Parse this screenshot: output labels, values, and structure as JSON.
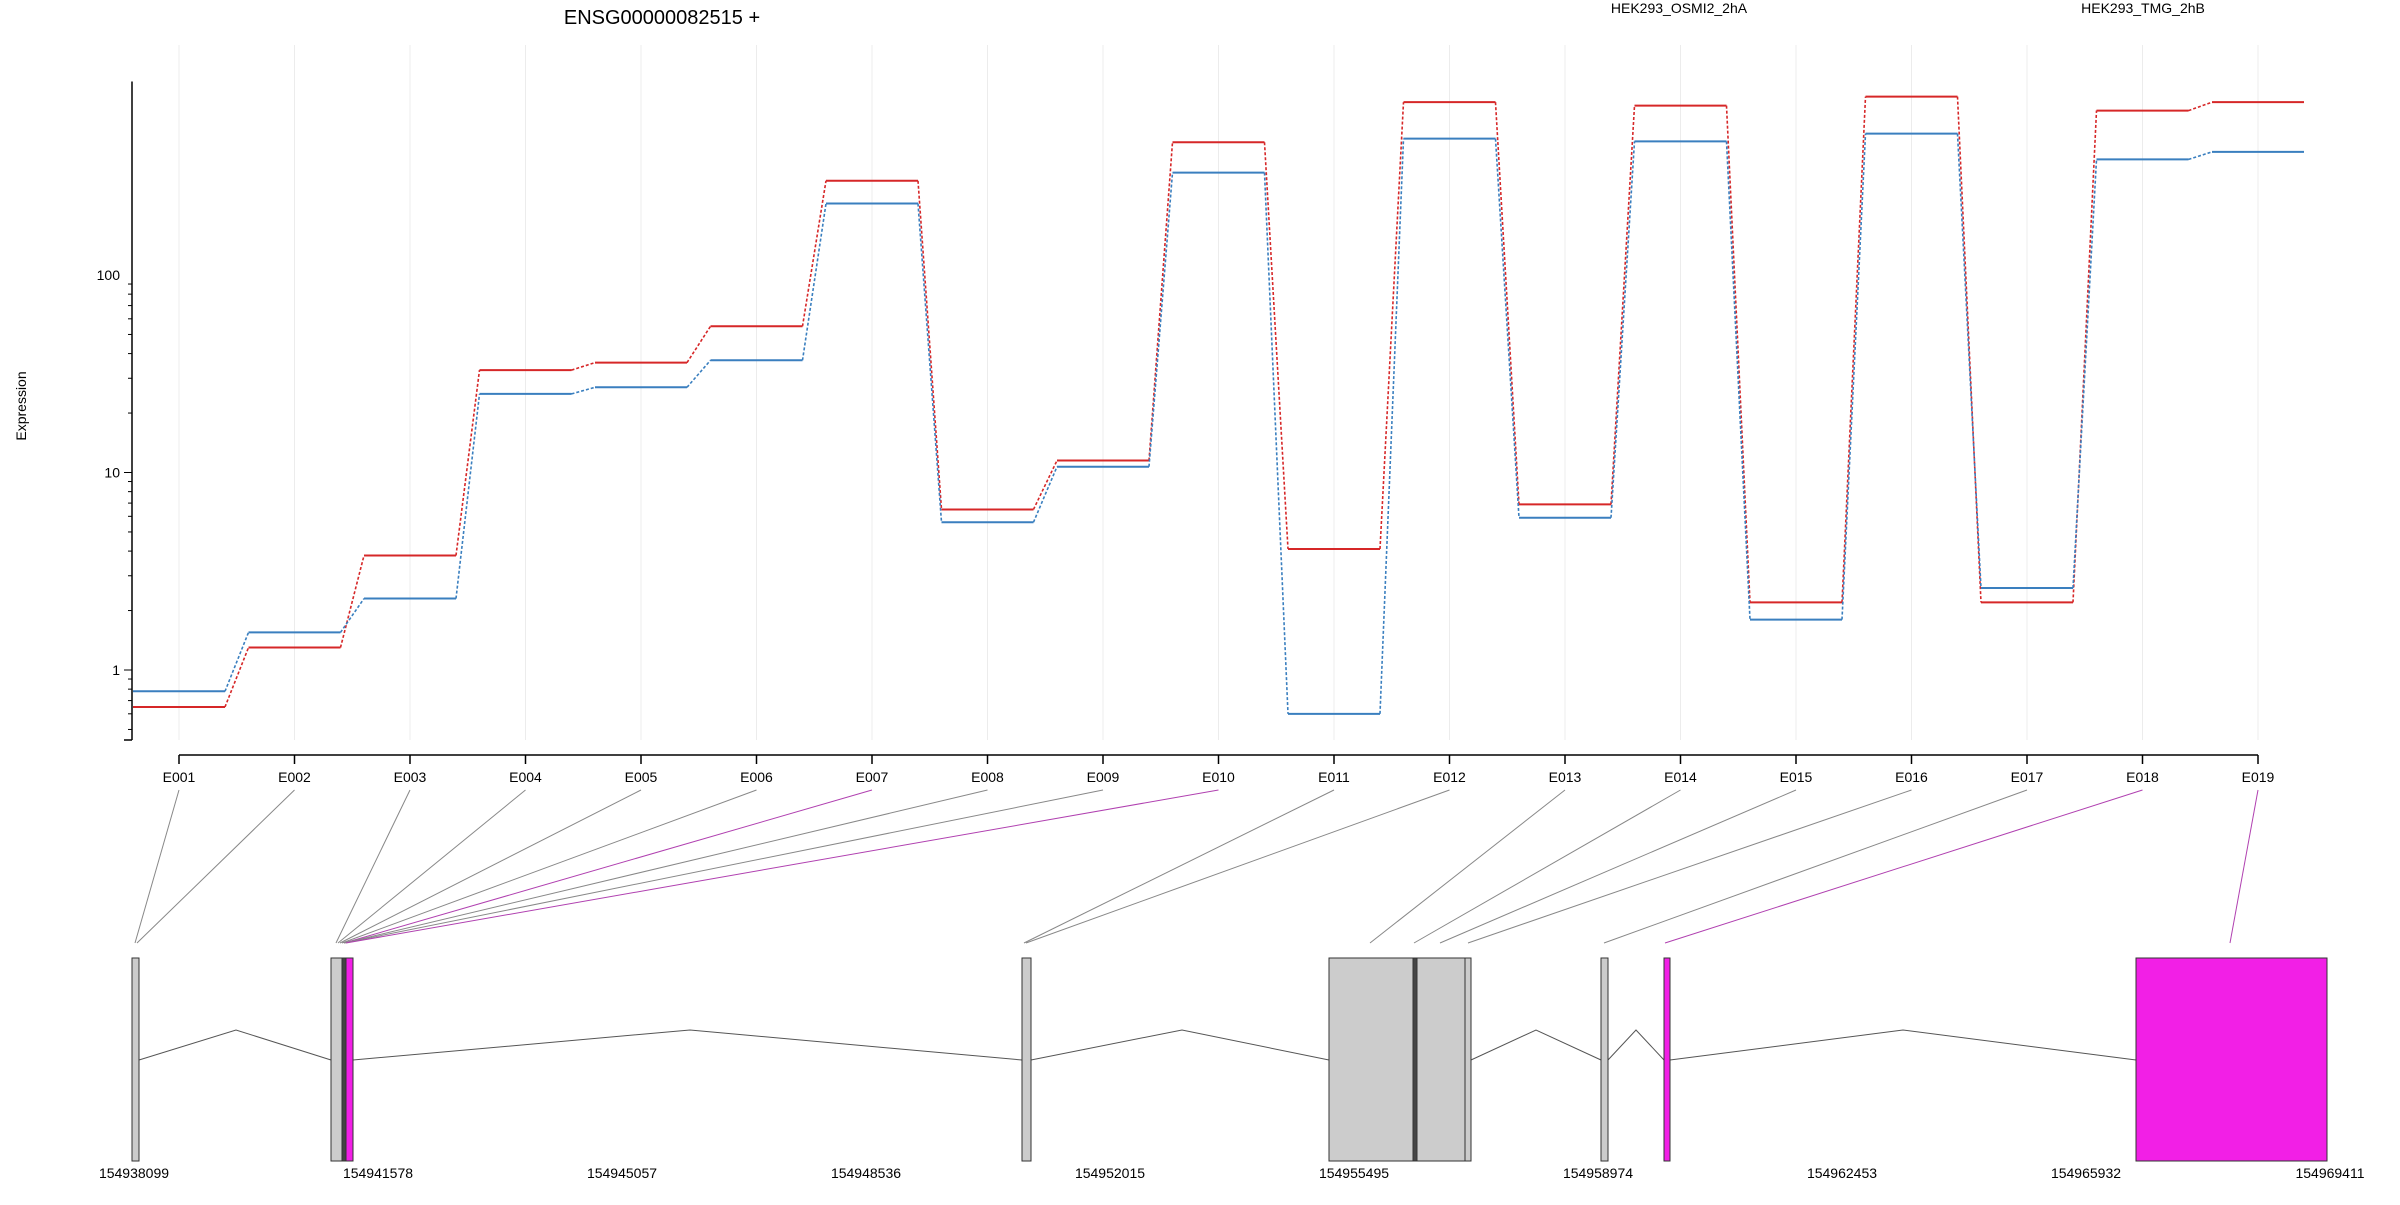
{
  "title": "ENSG00000082515 +",
  "ylabel": "Expression",
  "colors": {
    "osmi": "#d62728",
    "tmg": "#3a7fbf",
    "exon_gray": "#cccccc",
    "exon_magenta": "#f21fe6",
    "grid": "#ececec",
    "link_gray": "#888888",
    "link_magenta": "#b040b0"
  },
  "chart_data": {
    "type": "line",
    "yscale": "log",
    "ylim": [
      0.45,
      900
    ],
    "yticks": [
      "1",
      "10",
      "100"
    ],
    "categories": [
      "E001",
      "E002",
      "E003",
      "E004",
      "E005",
      "E006",
      "E007",
      "E008",
      "E009",
      "E010",
      "E011",
      "E012",
      "E013",
      "E014",
      "E015",
      "E016",
      "E017",
      "E018",
      "E019"
    ],
    "series": [
      {
        "name": "HEK293_OSMI2_2hA",
        "values": [
          0.65,
          1.3,
          3.8,
          33,
          36,
          55,
          300,
          6.5,
          11.5,
          470,
          4.1,
          750,
          6.9,
          720,
          2.2,
          800,
          2.2,
          680,
          750
        ]
      },
      {
        "name": "HEK293_TMG_2hB",
        "values": [
          0.78,
          1.55,
          2.3,
          25,
          27,
          37,
          230,
          5.6,
          10.7,
          330,
          0.6,
          490,
          5.9,
          475,
          1.8,
          520,
          2.6,
          385,
          420
        ]
      }
    ]
  },
  "gene_model": {
    "coord_ticks": [
      "154938099",
      "154941578",
      "154945057",
      "154948536",
      "154952015",
      "154955495",
      "154958974",
      "154962453",
      "154965932",
      "154969411"
    ],
    "exon_links": [
      {
        "label": "E001",
        "gx": 135,
        "style": "gray"
      },
      {
        "label": "E002",
        "gx": 137,
        "style": "gray"
      },
      {
        "label": "E003",
        "gx": 336,
        "style": "gray"
      },
      {
        "label": "E004",
        "gx": 338,
        "style": "gray"
      },
      {
        "label": "E005",
        "gx": 340,
        "style": "gray"
      },
      {
        "label": "E006",
        "gx": 342,
        "style": "gray"
      },
      {
        "label": "E007",
        "gx": 344,
        "style": "magenta"
      },
      {
        "label": "E008",
        "gx": 344,
        "style": "gray"
      },
      {
        "label": "E009",
        "gx": 344,
        "style": "gray"
      },
      {
        "label": "E010",
        "gx": 346,
        "style": "magenta"
      },
      {
        "label": "E011",
        "gx": 1024,
        "style": "gray"
      },
      {
        "label": "E012",
        "gx": 1026,
        "style": "gray"
      },
      {
        "label": "E013",
        "gx": 1370,
        "style": "gray"
      },
      {
        "label": "E014",
        "gx": 1414,
        "style": "gray"
      },
      {
        "label": "E015",
        "gx": 1440,
        "style": "gray"
      },
      {
        "label": "E016",
        "gx": 1468,
        "style": "gray"
      },
      {
        "label": "E017",
        "gx": 1604,
        "style": "gray"
      },
      {
        "label": "E018",
        "gx": 1665,
        "style": "magenta"
      },
      {
        "label": "E019",
        "gx": 2230,
        "style": "magenta"
      }
    ],
    "exons": [
      {
        "x0": 132,
        "x1": 139,
        "fill": "gray"
      },
      {
        "x0": 331,
        "x1": 342,
        "fill": "gray"
      },
      {
        "x0": 342,
        "x1": 346,
        "fill": "dark"
      },
      {
        "x0": 346,
        "x1": 353,
        "fill": "magenta"
      },
      {
        "x0": 1022,
        "x1": 1031,
        "fill": "gray"
      },
      {
        "x0": 1329,
        "x1": 1413,
        "fill": "gray"
      },
      {
        "x0": 1413,
        "x1": 1417,
        "fill": "dark"
      },
      {
        "x0": 1417,
        "x1": 1465,
        "fill": "gray"
      },
      {
        "x0": 1465,
        "x1": 1471,
        "fill": "gray"
      },
      {
        "x0": 1601,
        "x1": 1608,
        "fill": "gray"
      },
      {
        "x0": 1664,
        "x1": 1670,
        "fill": "magenta"
      },
      {
        "x0": 2136,
        "x1": 2327,
        "fill": "magenta"
      }
    ],
    "introns": [
      [
        139,
        236,
        353,
        331
      ],
      [
        353,
        690,
        1022
      ],
      [
        1031,
        1182,
        1329
      ],
      [
        1471,
        1536,
        1601
      ],
      [
        1608,
        1636,
        1664
      ],
      [
        1670,
        1903,
        2136
      ]
    ]
  }
}
